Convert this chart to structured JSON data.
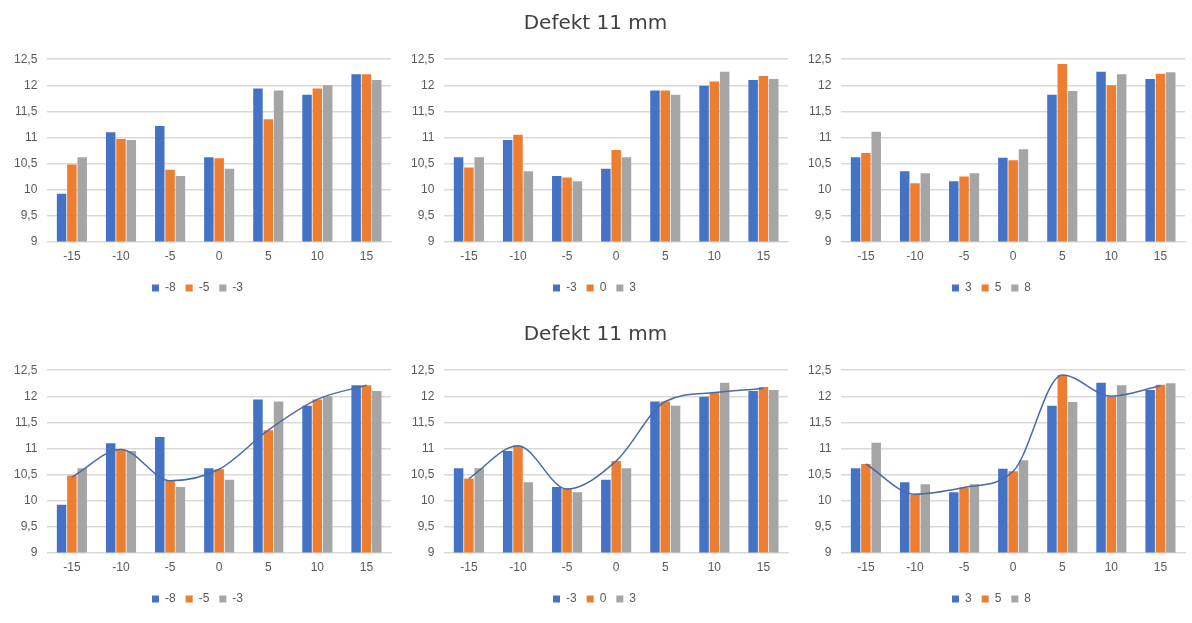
{
  "chart_data": [
    {
      "type": "bar",
      "categories": [
        "-15",
        "-10",
        "-5",
        "0",
        "5",
        "10",
        "15"
      ],
      "series": [
        {
          "name": "-8",
          "color": "#4472c4",
          "values": [
            9.92,
            11.1,
            11.22,
            10.62,
            11.94,
            11.82,
            12.21
          ]
        },
        {
          "name": "-5",
          "color": "#ed7d31",
          "values": [
            10.48,
            10.97,
            10.38,
            10.6,
            11.35,
            11.94,
            12.21
          ]
        },
        {
          "name": "-3",
          "color": "#a5a5a5",
          "values": [
            10.62,
            10.95,
            10.26,
            10.4,
            11.9,
            12.0,
            12.1
          ]
        }
      ],
      "ylim": [
        9,
        12.5
      ],
      "yticks": [
        9,
        {
          "value": 9.5,
          "label": "9,5"
        },
        10,
        {
          "value": 10.5,
          "label": "10,5"
        },
        11,
        {
          "value": 11.5,
          "label": "11,5"
        },
        12,
        {
          "value": 12.5,
          "label": "12,5"
        }
      ],
      "grid": "y",
      "legend": "bottom"
    },
    {
      "type": "bar",
      "title": "Defekt 11 mm",
      "categories": [
        "-15",
        "-10",
        "-5",
        "0",
        "5",
        "10",
        "15"
      ],
      "series": [
        {
          "name": "-3",
          "color": "#4472c4",
          "values": [
            10.62,
            10.95,
            10.26,
            10.4,
            11.9,
            11.99,
            12.1
          ]
        },
        {
          "name": "0",
          "color": "#ed7d31",
          "values": [
            10.42,
            11.05,
            10.23,
            10.76,
            11.9,
            12.07,
            12.18
          ]
        },
        {
          "name": "3",
          "color": "#a5a5a5",
          "values": [
            10.62,
            10.35,
            10.16,
            10.62,
            11.82,
            12.26,
            12.12
          ]
        }
      ],
      "ylim": [
        9,
        12.5
      ],
      "yticks": [
        9,
        {
          "value": 9.5,
          "label": "9,5"
        },
        10,
        {
          "value": 10.5,
          "label": "10,5"
        },
        11,
        {
          "value": 11.5,
          "label": "11,5"
        },
        12,
        {
          "value": 12.5,
          "label": "12,5"
        }
      ],
      "grid": "y",
      "legend": "bottom"
    },
    {
      "type": "bar",
      "categories": [
        "-15",
        "-10",
        "-5",
        "0",
        "5",
        "10",
        "15"
      ],
      "series": [
        {
          "name": "3",
          "color": "#4472c4",
          "values": [
            10.62,
            10.35,
            10.16,
            10.61,
            11.82,
            12.26,
            12.12
          ]
        },
        {
          "name": "5",
          "color": "#ed7d31",
          "values": [
            10.7,
            10.12,
            10.25,
            10.56,
            12.41,
            12.0,
            12.22
          ]
        },
        {
          "name": "8",
          "color": "#a5a5a5",
          "values": [
            11.11,
            10.31,
            10.31,
            10.77,
            11.89,
            12.21,
            12.25
          ]
        }
      ],
      "ylim": [
        9,
        12.5
      ],
      "yticks": [
        9,
        {
          "value": 9.5,
          "label": "9,5"
        },
        10,
        {
          "value": 10.5,
          "label": "10,5"
        },
        11,
        {
          "value": 11.5,
          "label": "11,5"
        },
        12,
        {
          "value": 12.5,
          "label": "12,5"
        }
      ],
      "grid": "y",
      "legend": "bottom"
    },
    {
      "type": "bar",
      "categories": [
        "-15",
        "-10",
        "-5",
        "0",
        "5",
        "10",
        "15"
      ],
      "series": [
        {
          "name": "-8",
          "color": "#4472c4",
          "values": [
            9.92,
            11.1,
            11.22,
            10.62,
            11.94,
            11.82,
            12.21
          ]
        },
        {
          "name": "-5",
          "color": "#ed7d31",
          "values": [
            10.48,
            10.97,
            10.38,
            10.6,
            11.35,
            11.94,
            12.21
          ]
        },
        {
          "name": "-3",
          "color": "#a5a5a5",
          "values": [
            10.62,
            10.95,
            10.26,
            10.4,
            11.9,
            12.0,
            12.1
          ]
        },
        {
          "type": "line",
          "color": "#4a6aa8",
          "values": [
            10.45,
            10.98,
            10.38,
            10.6,
            11.35,
            11.94,
            12.21
          ]
        }
      ],
      "ylim": [
        9,
        12.5
      ],
      "yticks": [
        9,
        {
          "value": 9.5,
          "label": "9,5"
        },
        10,
        {
          "value": 10.5,
          "label": "10,5"
        },
        11,
        {
          "value": 11.5,
          "label": "11,5"
        },
        12,
        {
          "value": 12.5,
          "label": "12,5"
        }
      ],
      "grid": "y",
      "legend": "bottom",
      "marker": "none"
    },
    {
      "type": "bar",
      "title": "Defekt 11 mm",
      "categories": [
        "-15",
        "-10",
        "-5",
        "0",
        "5",
        "10",
        "15"
      ],
      "series": [
        {
          "name": "-3",
          "color": "#4472c4",
          "values": [
            10.62,
            10.95,
            10.26,
            10.4,
            11.9,
            11.99,
            12.1
          ]
        },
        {
          "name": "0",
          "color": "#ed7d31",
          "values": [
            10.42,
            11.05,
            10.23,
            10.76,
            11.9,
            12.07,
            12.18
          ]
        },
        {
          "name": "3",
          "color": "#a5a5a5",
          "values": [
            10.62,
            10.35,
            10.16,
            10.62,
            11.82,
            12.26,
            12.12
          ]
        },
        {
          "type": "line",
          "color": "#4a6aa8",
          "values": [
            10.42,
            11.05,
            10.22,
            10.76,
            11.9,
            12.07,
            12.15
          ]
        }
      ],
      "ylim": [
        9,
        12.5
      ],
      "yticks": [
        9,
        {
          "value": 9.5,
          "label": "9,5"
        },
        10,
        {
          "value": 10.5,
          "label": "10,5"
        },
        11,
        {
          "value": 11.5,
          "label": "11,5"
        },
        12,
        {
          "value": 12.5,
          "label": "12,5"
        }
      ],
      "grid": "y",
      "legend": "bottom",
      "marker": "none"
    },
    {
      "type": "bar",
      "categories": [
        "-15",
        "-10",
        "-5",
        "0",
        "5",
        "10",
        "15"
      ],
      "series": [
        {
          "name": "3",
          "color": "#4472c4",
          "values": [
            10.62,
            10.35,
            10.16,
            10.61,
            11.82,
            12.26,
            12.12
          ]
        },
        {
          "name": "5",
          "color": "#ed7d31",
          "values": [
            10.7,
            10.12,
            10.25,
            10.56,
            12.41,
            12.0,
            12.22
          ]
        },
        {
          "name": "8",
          "color": "#a5a5a5",
          "values": [
            11.11,
            10.31,
            10.31,
            10.77,
            11.89,
            12.21,
            12.25
          ]
        },
        {
          "type": "line",
          "color": "#4a6aa8",
          "values": [
            10.7,
            10.12,
            10.25,
            10.56,
            12.41,
            12.0,
            12.2
          ]
        }
      ],
      "ylim": [
        9,
        12.5
      ],
      "yticks": [
        9,
        {
          "value": 9.5,
          "label": "9,5"
        },
        10,
        {
          "value": 10.5,
          "label": "10,5"
        },
        11,
        {
          "value": 11.5,
          "label": "11,5"
        },
        12,
        {
          "value": 12.5,
          "label": "12,5"
        }
      ],
      "grid": "y",
      "legend": "bottom",
      "marker": "none"
    }
  ]
}
